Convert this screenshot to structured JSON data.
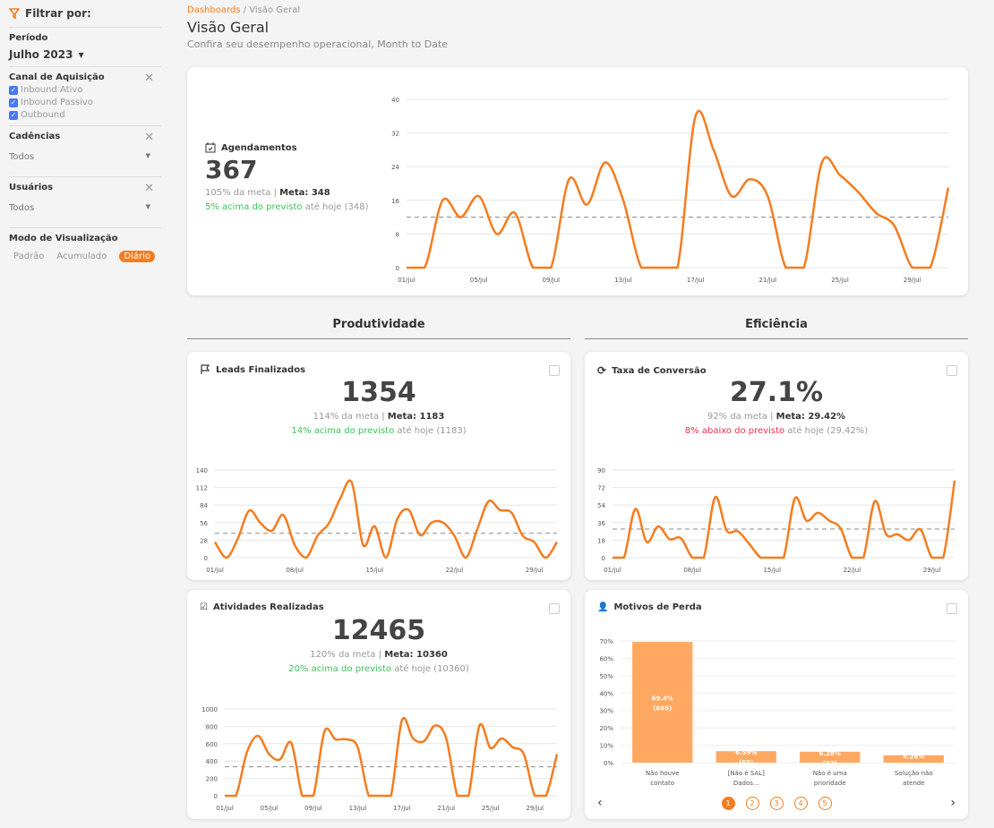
{
  "sidebar": {
    "title": "Filtrar por:",
    "period_label": "Período",
    "period_value": "Julho 2023",
    "channel_label": "Canal de Aquisição",
    "channels": [
      "Inbound Ativo",
      "Inbound Passivo",
      "Outbound"
    ],
    "cadence_label": "Cadências",
    "cadence_value": "Todos",
    "users_label": "Usuários",
    "users_value": "Todos",
    "mode_label": "Modo de Visualização",
    "modes": [
      "Padrão",
      "Acumulado",
      "Diário"
    ]
  },
  "header": {
    "breadcrumb_root": "Dashboards",
    "breadcrumb_sep": " / ",
    "breadcrumb_current": "Visão Geral",
    "title": "Visão Geral",
    "subtitle": "Confira seu desempenho operacional, Month to Date"
  },
  "sections": {
    "left": "Produtividade",
    "right": "Eficiência"
  },
  "colors": {
    "accent": "#f57c1f",
    "bar": "#ffa862",
    "green": "#3cc45a",
    "red": "#f0304e"
  },
  "cards": {
    "agendamentos": {
      "title": "Agendamentos",
      "value": "367",
      "pct": "105% da meta",
      "sep": " | ",
      "meta": "Meta: 348",
      "delta": "5% acima do previsto",
      "delta_tail": " até hoje ",
      "delta_ref": "(348)"
    },
    "leads": {
      "title": "Leads Finalizados",
      "value": "1354",
      "pct": "114% da meta",
      "sep": " | ",
      "meta": "Meta: 1183",
      "delta": "14% acima do previsto",
      "delta_tail": " até hoje ",
      "delta_ref": "(1183)"
    },
    "conversao": {
      "title": "Taxa de Conversão",
      "value": "27.1%",
      "pct": "92% da meta",
      "sep": " | ",
      "meta": "Meta: 29.42%",
      "delta": "8% abaixo do previsto",
      "delta_tail": " até hoje ",
      "delta_ref": "(29.42%)"
    },
    "atividades": {
      "title": "Atividades Realizadas",
      "value": "12465",
      "pct": "120% da meta",
      "sep": " | ",
      "meta": "Meta: 10360",
      "delta": "20% acima do previsto",
      "delta_tail": " até hoje ",
      "delta_ref": "(10360)"
    },
    "motivos": {
      "title": "Motivos de Perda",
      "pages": [
        "1",
        "2",
        "3",
        "4",
        "5"
      ],
      "current_page": 1
    }
  },
  "chart_data": [
    {
      "id": "agendamentos",
      "type": "line",
      "ylim": [
        0,
        40
      ],
      "yticks": [
        0,
        8,
        16,
        24,
        32,
        40
      ],
      "xticks": [
        "01/jul",
        "05/jul",
        "09/jul",
        "13/jul",
        "17/jul",
        "21/jul",
        "25/jul",
        "29/jul"
      ],
      "xtick_step": 4,
      "target": 12,
      "values": [
        0,
        0,
        16,
        12,
        17,
        8,
        13,
        0,
        0,
        21,
        15,
        25,
        16,
        0,
        0,
        0,
        36,
        28,
        17,
        21,
        17,
        0,
        0,
        25,
        22,
        18,
        13,
        10,
        0,
        0,
        19
      ]
    },
    {
      "id": "leads",
      "type": "line",
      "ylim": [
        0,
        140
      ],
      "yticks": [
        0,
        28,
        56,
        84,
        112,
        140
      ],
      "xticks": [
        "01/jul",
        "08/jul",
        "15/jul",
        "22/jul",
        "29/jul"
      ],
      "xtick_step": 7,
      "target": 39,
      "values": [
        25,
        0,
        30,
        75,
        55,
        43,
        68,
        20,
        0,
        35,
        55,
        95,
        120,
        20,
        50,
        0,
        62,
        76,
        36,
        56,
        56,
        35,
        0,
        45,
        90,
        76,
        72,
        35,
        25,
        0,
        25
      ]
    },
    {
      "id": "conversao",
      "type": "line",
      "ylim": [
        0,
        90
      ],
      "yticks": [
        0,
        18,
        36,
        54,
        72,
        90
      ],
      "xticks": [
        "01/jul",
        "08/jul",
        "15/jul",
        "22/jul",
        "29/jul"
      ],
      "xtick_step": 7,
      "target": 29.42,
      "values": [
        0,
        0,
        50,
        16,
        32,
        19,
        20,
        0,
        0,
        62,
        28,
        27,
        14,
        0,
        0,
        0,
        61,
        38,
        46,
        38,
        30,
        0,
        0,
        58,
        24,
        24,
        18,
        29,
        0,
        0,
        79
      ]
    },
    {
      "id": "atividades",
      "type": "line",
      "ylim": [
        0,
        1000
      ],
      "yticks": [
        0,
        200,
        400,
        600,
        800,
        1000
      ],
      "xticks": [
        "01/jul",
        "05/jul",
        "09/jul",
        "13/jul",
        "17/jul",
        "21/jul",
        "25/jul",
        "29/jul"
      ],
      "xtick_step": 4,
      "target": 334,
      "values": [
        0,
        0,
        500,
        690,
        480,
        420,
        610,
        0,
        0,
        740,
        650,
        650,
        560,
        0,
        0,
        0,
        870,
        660,
        630,
        810,
        660,
        0,
        0,
        810,
        550,
        660,
        560,
        480,
        0,
        0,
        480
      ]
    },
    {
      "id": "motivos",
      "type": "bar",
      "ylim": [
        0,
        70
      ],
      "yticks": [
        "0%",
        "10%",
        "20%",
        "30%",
        "40%",
        "50%",
        "60%",
        "70%"
      ],
      "categories": [
        [
          "Não houve",
          "contato"
        ],
        [
          "[Não é SAL]",
          "Dados..."
        ],
        [
          "Não é uma",
          "prioridade"
        ],
        [
          "Solução não",
          "atende"
        ]
      ],
      "values": [
        69.4,
        6.59,
        6.28,
        4.26
      ],
      "labels": [
        "69.4%",
        "6.59%",
        "6.28%",
        "4.26%"
      ],
      "counts": [
        "(685)",
        "(65)",
        "(62)",
        "(42)"
      ]
    }
  ]
}
